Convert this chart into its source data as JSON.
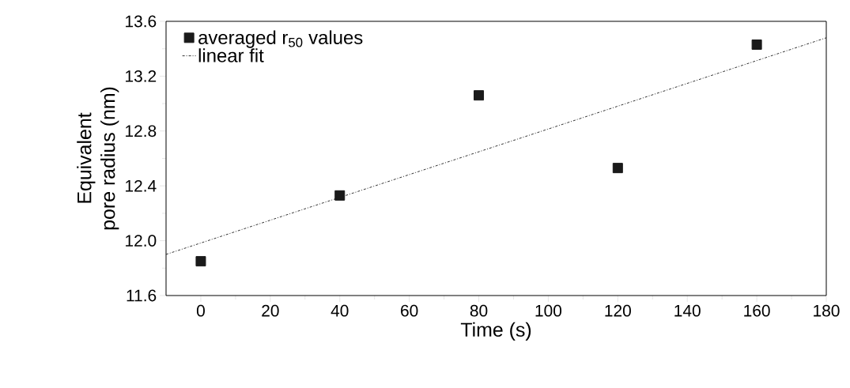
{
  "chart_data": {
    "type": "scatter",
    "xlabel": "Time (s)",
    "ylabel": "Equivalent\npore radius (nm)",
    "x": [
      0,
      40,
      80,
      120,
      160
    ],
    "series": [
      {
        "name": "averaged r$_{50}$ values",
        "color": "#1a1a1a",
        "marker": "square",
        "values": [
          11.85,
          12.33,
          13.06,
          12.53,
          13.43
        ]
      },
      {
        "name": "linear fit",
        "type": "line",
        "color": "#1a1a1a",
        "marker": "none",
        "line_style": "dashdot",
        "x": [
          -10,
          180
        ],
        "values": [
          11.9,
          13.48
        ]
      }
    ],
    "xlim": [
      -10,
      180
    ],
    "ylim": [
      11.6,
      13.6
    ],
    "xticks": [
      0,
      20,
      40,
      60,
      80,
      100,
      120,
      140,
      160,
      180
    ],
    "yticks": [
      11.6,
      {
        "value": 12.0,
        "label": "12.0"
      },
      12.4,
      12.8,
      13.2,
      13.6
    ],
    "grid": false,
    "legend": "top left"
  }
}
